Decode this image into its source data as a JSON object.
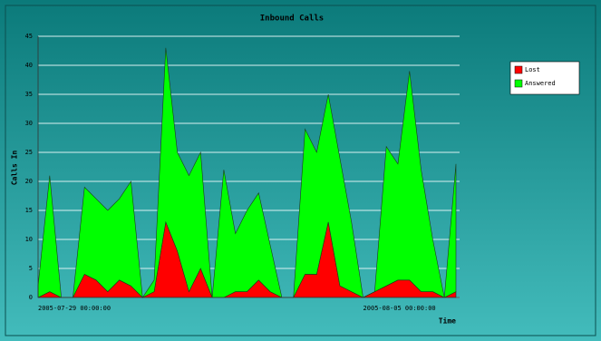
{
  "chart_data": {
    "type": "stacked-area",
    "title": "Inbound Calls",
    "ylabel": "Calls In",
    "xlabel": "Time",
    "categories": [
      "2005-07-29 00:00:00",
      null,
      null,
      null,
      null,
      null,
      null,
      null,
      null,
      null,
      null,
      null,
      null,
      null,
      null,
      null,
      null,
      null,
      null,
      null,
      null,
      null,
      null,
      null,
      null,
      null,
      null,
      null,
      "2005-08-05 00:00:00",
      null,
      null,
      null,
      null,
      null,
      null,
      null,
      null
    ],
    "series": [
      {
        "name": "Lost",
        "color": "#ff0000",
        "values": [
          0,
          1,
          0,
          0,
          4,
          3,
          1,
          3,
          2,
          0,
          1,
          13,
          8,
          1,
          5,
          0,
          0,
          1,
          1,
          3,
          1,
          0,
          0,
          4,
          4,
          13,
          2,
          1,
          0,
          1,
          2,
          3,
          3,
          1,
          1,
          0,
          1
        ]
      },
      {
        "name": "Answered",
        "color": "#00ff00",
        "values": [
          2,
          20,
          0,
          0,
          15,
          14,
          14,
          14,
          18,
          0,
          2,
          30,
          17,
          20,
          20,
          0,
          22,
          10,
          14,
          15,
          8,
          0,
          0,
          25,
          21,
          22,
          22,
          12,
          0,
          0,
          24,
          20,
          36,
          21,
          9,
          0,
          22
        ]
      }
    ],
    "ylim": [
      0,
      45
    ],
    "yticks": [
      0,
      5,
      10,
      15,
      20,
      25,
      30,
      35,
      40,
      45
    ],
    "grid": true,
    "legend": "right"
  }
}
